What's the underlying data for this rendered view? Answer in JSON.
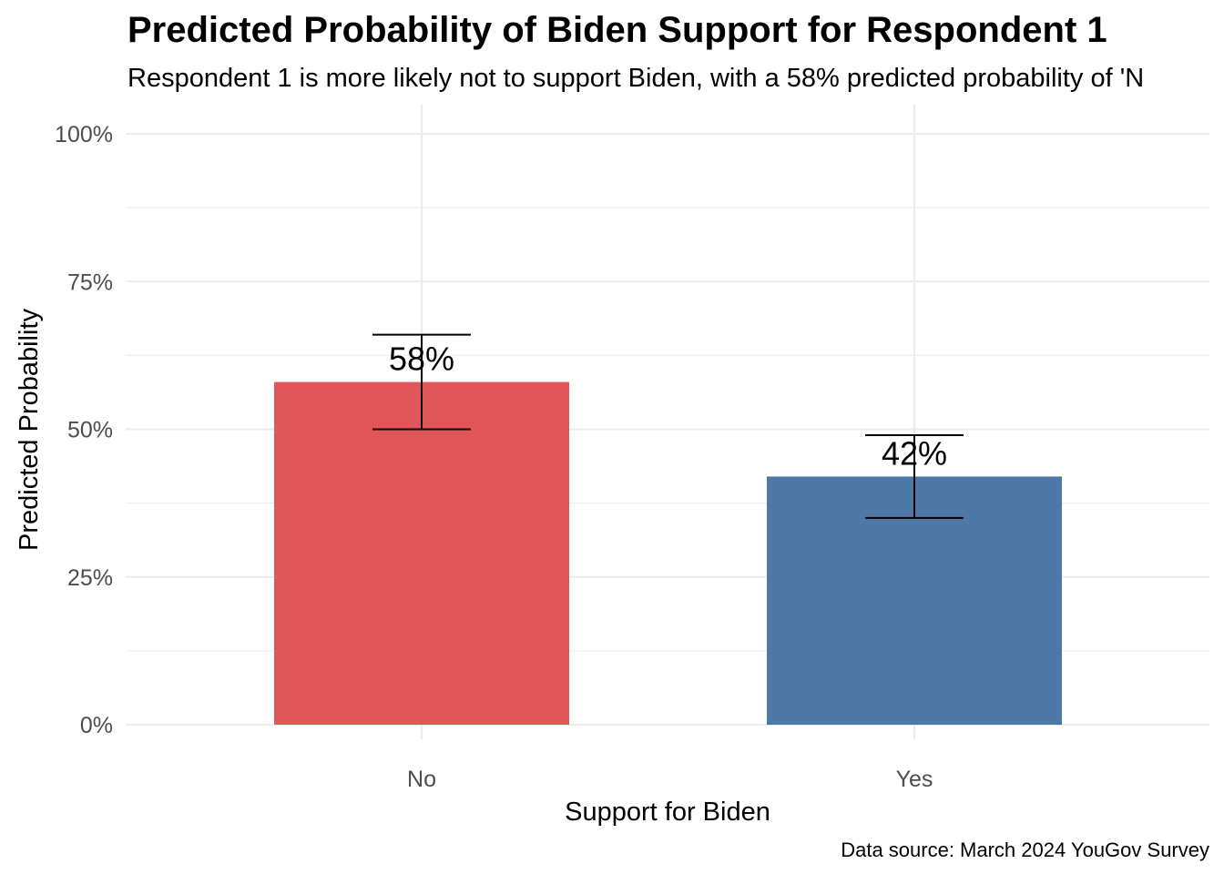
{
  "chart_data": {
    "type": "bar",
    "title": "Predicted Probability of Biden Support for Respondent 1",
    "subtitle": "Respondent 1 is more likely not to support Biden, with a 58% predicted probability of 'N",
    "xlabel": "Support for Biden",
    "ylabel": "Predicted Probability",
    "caption": "Data source: March 2024 YouGov Survey",
    "categories": [
      "No",
      "Yes"
    ],
    "values": [
      0.58,
      0.42
    ],
    "error_low": [
      0.5,
      0.35
    ],
    "error_high": [
      0.66,
      0.49
    ],
    "data_labels": [
      "58%",
      "42%"
    ],
    "colors": [
      "#E15759",
      "#4E79A7"
    ],
    "ylim": [
      0,
      1
    ],
    "yticks": [
      0,
      0.25,
      0.5,
      0.75,
      1.0
    ],
    "ytick_labels": [
      "0%",
      "25%",
      "50%",
      "75%",
      "100%"
    ],
    "grid": true,
    "legend": "none"
  }
}
